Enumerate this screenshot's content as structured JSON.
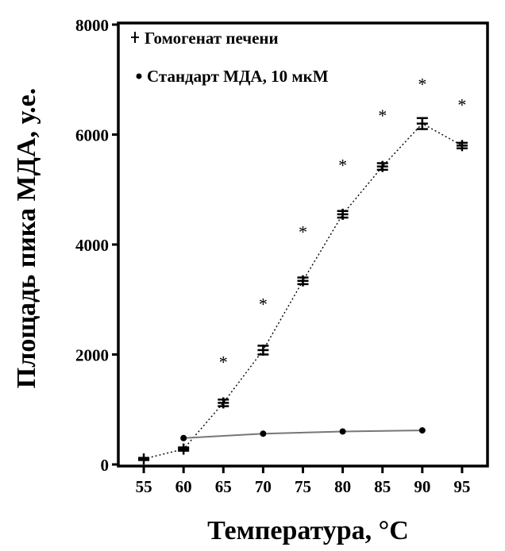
{
  "chart_data": {
    "type": "line",
    "xlabel": "Температура, °С",
    "ylabel": "Площадь пика МДА, у.е.",
    "xlim": [
      52,
      98
    ],
    "ylim": [
      0,
      8000
    ],
    "x_ticks": [
      55,
      60,
      65,
      70,
      75,
      80,
      85,
      90,
      95
    ],
    "y_ticks": [
      0,
      2000,
      4000,
      6000,
      8000
    ],
    "grid": false,
    "legend_position": "top-left",
    "series": [
      {
        "name": "Гомогенат печени",
        "marker": "plus",
        "line_style": "dotted",
        "color": "#000000",
        "x": [
          55,
          60,
          65,
          70,
          75,
          80,
          85,
          90,
          95
        ],
        "y": [
          100,
          280,
          1120,
          2080,
          3340,
          4550,
          5420,
          6200,
          5800
        ],
        "error": [
          20,
          30,
          60,
          80,
          60,
          60,
          60,
          100,
          50
        ]
      },
      {
        "name": "Стандарт МДА, 10 мкМ",
        "marker": "circle",
        "line_style": "solid",
        "color": "#777777",
        "x": [
          60,
          70,
          80,
          90
        ],
        "y": [
          480,
          560,
          600,
          620
        ]
      }
    ],
    "annotations": [
      {
        "text": "*",
        "x": 65,
        "y": 1900
      },
      {
        "text": "*",
        "x": 70,
        "y": 2950
      },
      {
        "text": "*",
        "x": 75,
        "y": 4270
      },
      {
        "text": "*",
        "x": 80,
        "y": 5480
      },
      {
        "text": "*",
        "x": 85,
        "y": 6380
      },
      {
        "text": "*",
        "x": 90,
        "y": 6950
      },
      {
        "text": "*",
        "x": 95,
        "y": 6580
      }
    ]
  }
}
